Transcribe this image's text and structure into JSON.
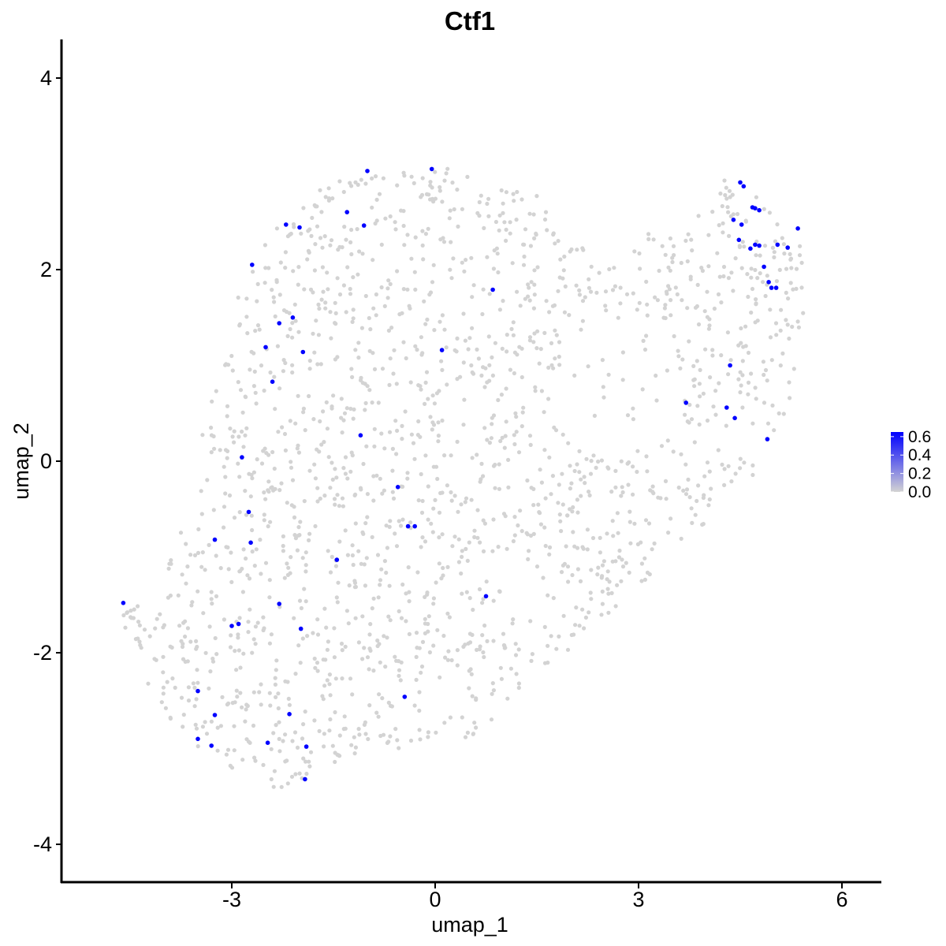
{
  "chart_data": {
    "type": "scatter",
    "title": "Ctf1",
    "xlabel": "umap_1",
    "ylabel": "umap_2",
    "xlim": [
      -5.4,
      6.6
    ],
    "ylim": [
      -4.3,
      4.4
    ],
    "x_ticks": [
      -3,
      0,
      3,
      6
    ],
    "y_ticks": [
      -4,
      -2,
      0,
      2,
      4
    ],
    "x_tick_labels": [
      "-3",
      "0",
      "3",
      "6"
    ],
    "y_tick_labels": [
      "-4",
      "-2",
      "0",
      "2",
      "4"
    ],
    "grid": false,
    "legend": {
      "placement": "right",
      "type": "colorbar",
      "range": [
        0,
        0.65
      ],
      "breaks": [
        0.0,
        0.2,
        0.4,
        0.6
      ],
      "labels": [
        "0.0",
        "0.2",
        "0.4",
        "0.6"
      ],
      "low_color": "#d3d3d3",
      "high_color": "#0000ff"
    },
    "colors": {
      "background_point": "#d3d3d3",
      "expressed_point": "#0000ff"
    },
    "expressed_points": [
      [
        -4.6,
        -1.48
      ],
      [
        -3.5,
        -2.4
      ],
      [
        -3.5,
        -2.9
      ],
      [
        -3.25,
        -2.65
      ],
      [
        -3.3,
        -2.97
      ],
      [
        -3.25,
        -0.82
      ],
      [
        -3.0,
        -1.72
      ],
      [
        -2.9,
        -1.7
      ],
      [
        -2.85,
        0.04
      ],
      [
        -2.75,
        -0.53
      ],
      [
        -2.72,
        -0.85
      ],
      [
        -2.7,
        2.05
      ],
      [
        -2.5,
        1.19
      ],
      [
        -2.4,
        0.83
      ],
      [
        -2.3,
        1.44
      ],
      [
        -2.2,
        2.47
      ],
      [
        -2.3,
        -1.49
      ],
      [
        -2.1,
        1.5
      ],
      [
        -2.0,
        2.44
      ],
      [
        -1.95,
        1.14
      ],
      [
        -1.98,
        -1.75
      ],
      [
        -2.15,
        -2.64
      ],
      [
        -2.47,
        -2.94
      ],
      [
        -1.9,
        -2.98
      ],
      [
        -1.92,
        -3.32
      ],
      [
        -1.3,
        2.6
      ],
      [
        -1.0,
        3.03
      ],
      [
        -1.05,
        2.46
      ],
      [
        -1.1,
        0.27
      ],
      [
        -1.45,
        -1.03
      ],
      [
        -0.55,
        -0.27
      ],
      [
        -0.4,
        -0.68
      ],
      [
        -0.3,
        -0.68
      ],
      [
        -0.45,
        -2.46
      ],
      [
        -0.05,
        3.05
      ],
      [
        0.1,
        1.16
      ],
      [
        0.85,
        1.79
      ],
      [
        0.75,
        -1.41
      ],
      [
        3.7,
        0.61
      ],
      [
        4.3,
        0.56
      ],
      [
        4.35,
        1.0
      ],
      [
        4.42,
        0.45
      ],
      [
        4.4,
        2.52
      ],
      [
        4.48,
        2.31
      ],
      [
        4.5,
        2.91
      ],
      [
        4.55,
        2.87
      ],
      [
        4.52,
        2.47
      ],
      [
        4.65,
        2.22
      ],
      [
        4.68,
        2.65
      ],
      [
        4.72,
        2.64
      ],
      [
        4.78,
        2.62
      ],
      [
        4.72,
        2.26
      ],
      [
        4.78,
        2.25
      ],
      [
        4.85,
        2.03
      ],
      [
        4.92,
        1.87
      ],
      [
        4.96,
        1.81
      ],
      [
        5.03,
        1.81
      ],
      [
        5.05,
        2.26
      ],
      [
        4.9,
        0.23
      ],
      [
        5.2,
        2.23
      ],
      [
        5.35,
        2.43
      ]
    ]
  }
}
